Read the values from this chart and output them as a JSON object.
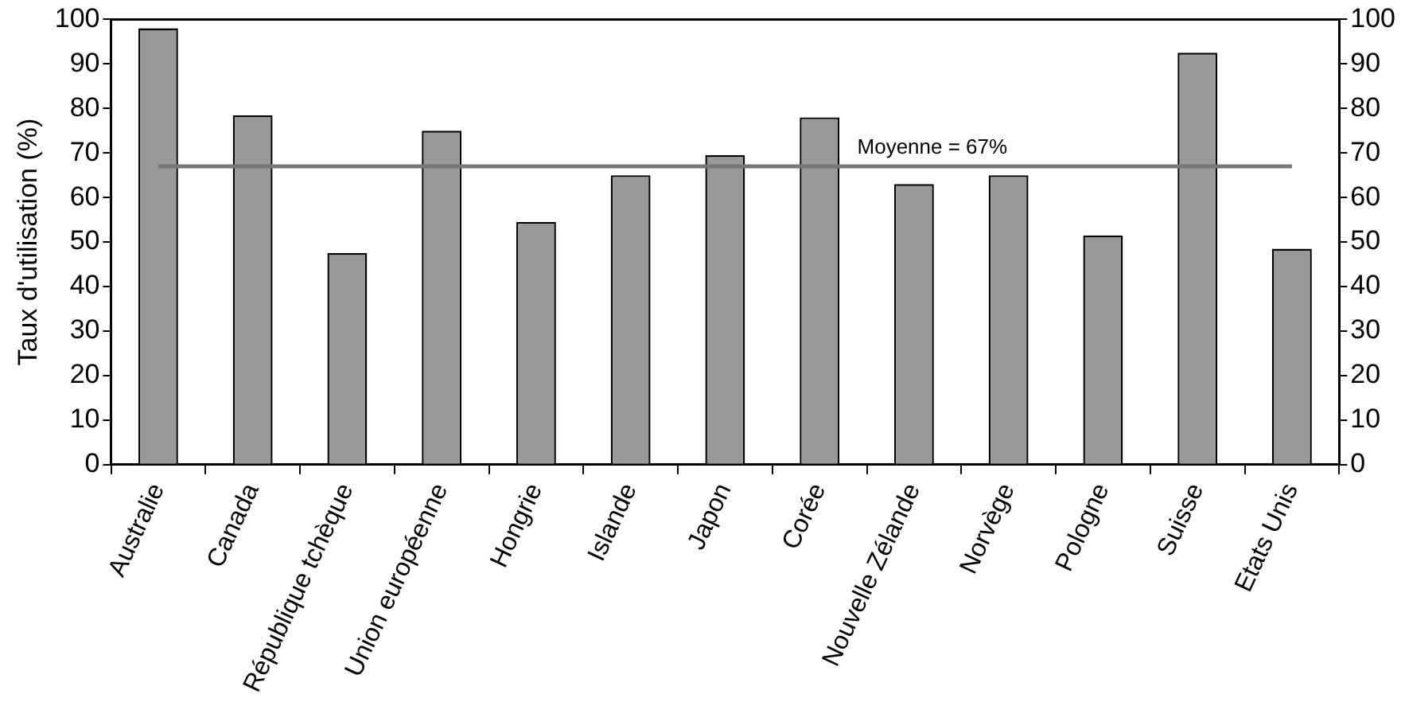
{
  "chart_data": {
    "type": "bar",
    "ylabel": "Taux d'utilisation (%)",
    "categories": [
      "Australie",
      "Canada",
      "République tchèque",
      "Union européenne",
      "Hongrie",
      "Islande",
      "Japon",
      "Corée",
      "Nouvelle Zélande",
      "Norvège",
      "Pologne",
      "Suisse",
      "Etats Unis"
    ],
    "values": [
      98,
      78.5,
      47.5,
      75,
      54.5,
      65,
      69.5,
      78,
      63,
      65,
      51.5,
      92.5,
      48.5
    ],
    "color": "#999999",
    "ylim": [
      0,
      100
    ],
    "yticks": [
      0,
      10,
      20,
      30,
      40,
      50,
      60,
      70,
      80,
      90,
      100
    ],
    "y2lim": [
      0,
      100
    ],
    "y2ticks": [
      0,
      10,
      20,
      30,
      40,
      50,
      60,
      70,
      80,
      90,
      100
    ],
    "grid": false,
    "legend": false,
    "ref_lines": [
      {
        "axis": "y",
        "value": 67,
        "label": "Moyenne = 67%",
        "color": "#777777"
      }
    ]
  }
}
